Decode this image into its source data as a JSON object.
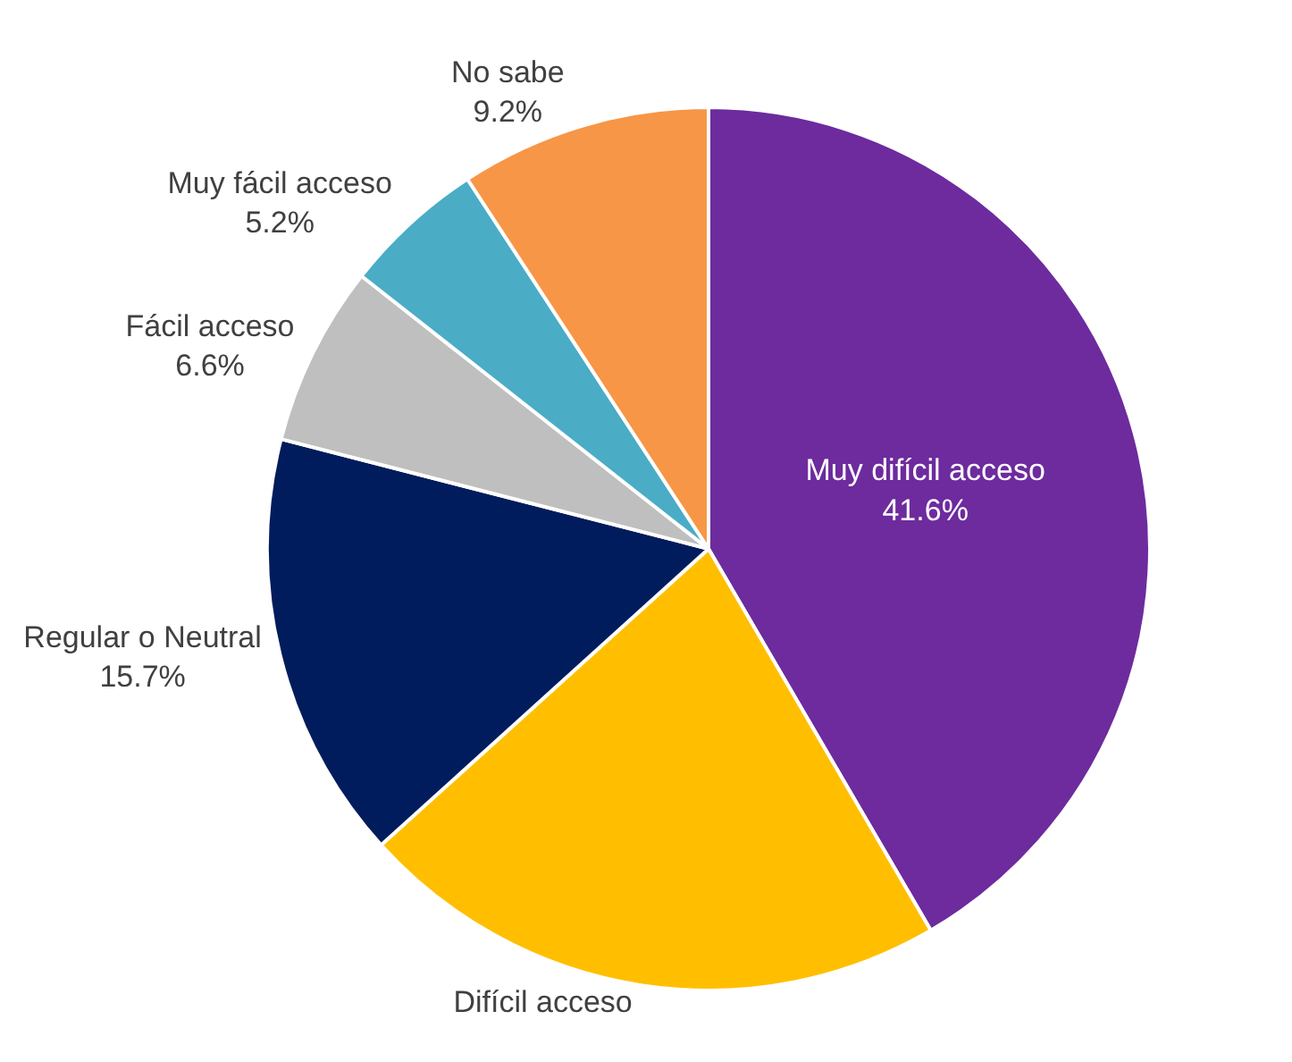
{
  "chart_data": {
    "type": "pie",
    "categories": [
      "Muy difícil acceso",
      "Difícil acceso",
      "Regular o Neutral",
      "Fácil acceso",
      "Muy fácil acceso",
      "No sabe"
    ],
    "values": [
      41.6,
      21.7,
      15.7,
      6.6,
      5.2,
      9.2
    ],
    "colors": [
      "#6d2b9e",
      "#ffbf00",
      "#001c5c",
      "#bfbfbf",
      "#4bacc6",
      "#f79646"
    ],
    "value_labels": [
      "41.6%",
      null,
      "15.7%",
      "6.6%",
      "5.2%",
      "9.2%"
    ],
    "legend": false
  }
}
